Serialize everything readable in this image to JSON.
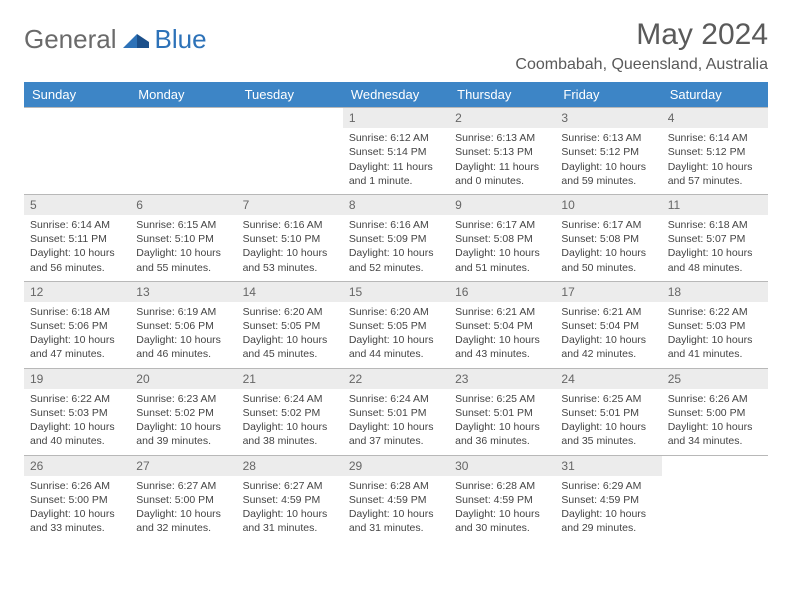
{
  "logo": {
    "text1": "General",
    "text2": "Blue"
  },
  "title": "May 2024",
  "location": "Coombabah, Queensland, Australia",
  "day_headers": [
    "Sunday",
    "Monday",
    "Tuesday",
    "Wednesday",
    "Thursday",
    "Friday",
    "Saturday"
  ],
  "colors": {
    "header_bg": "#3d85c6",
    "header_fg": "#ffffff",
    "daynum_bg": "#ececec",
    "border": "#b8b8b8",
    "text": "#444444",
    "title": "#5a5a5a"
  },
  "weeks": [
    [
      {
        "n": "",
        "sr": "",
        "ss": "",
        "dl": ""
      },
      {
        "n": "",
        "sr": "",
        "ss": "",
        "dl": ""
      },
      {
        "n": "",
        "sr": "",
        "ss": "",
        "dl": ""
      },
      {
        "n": "1",
        "sr": "Sunrise: 6:12 AM",
        "ss": "Sunset: 5:14 PM",
        "dl": "Daylight: 11 hours and 1 minute."
      },
      {
        "n": "2",
        "sr": "Sunrise: 6:13 AM",
        "ss": "Sunset: 5:13 PM",
        "dl": "Daylight: 11 hours and 0 minutes."
      },
      {
        "n": "3",
        "sr": "Sunrise: 6:13 AM",
        "ss": "Sunset: 5:12 PM",
        "dl": "Daylight: 10 hours and 59 minutes."
      },
      {
        "n": "4",
        "sr": "Sunrise: 6:14 AM",
        "ss": "Sunset: 5:12 PM",
        "dl": "Daylight: 10 hours and 57 minutes."
      }
    ],
    [
      {
        "n": "5",
        "sr": "Sunrise: 6:14 AM",
        "ss": "Sunset: 5:11 PM",
        "dl": "Daylight: 10 hours and 56 minutes."
      },
      {
        "n": "6",
        "sr": "Sunrise: 6:15 AM",
        "ss": "Sunset: 5:10 PM",
        "dl": "Daylight: 10 hours and 55 minutes."
      },
      {
        "n": "7",
        "sr": "Sunrise: 6:16 AM",
        "ss": "Sunset: 5:10 PM",
        "dl": "Daylight: 10 hours and 53 minutes."
      },
      {
        "n": "8",
        "sr": "Sunrise: 6:16 AM",
        "ss": "Sunset: 5:09 PM",
        "dl": "Daylight: 10 hours and 52 minutes."
      },
      {
        "n": "9",
        "sr": "Sunrise: 6:17 AM",
        "ss": "Sunset: 5:08 PM",
        "dl": "Daylight: 10 hours and 51 minutes."
      },
      {
        "n": "10",
        "sr": "Sunrise: 6:17 AM",
        "ss": "Sunset: 5:08 PM",
        "dl": "Daylight: 10 hours and 50 minutes."
      },
      {
        "n": "11",
        "sr": "Sunrise: 6:18 AM",
        "ss": "Sunset: 5:07 PM",
        "dl": "Daylight: 10 hours and 48 minutes."
      }
    ],
    [
      {
        "n": "12",
        "sr": "Sunrise: 6:18 AM",
        "ss": "Sunset: 5:06 PM",
        "dl": "Daylight: 10 hours and 47 minutes."
      },
      {
        "n": "13",
        "sr": "Sunrise: 6:19 AM",
        "ss": "Sunset: 5:06 PM",
        "dl": "Daylight: 10 hours and 46 minutes."
      },
      {
        "n": "14",
        "sr": "Sunrise: 6:20 AM",
        "ss": "Sunset: 5:05 PM",
        "dl": "Daylight: 10 hours and 45 minutes."
      },
      {
        "n": "15",
        "sr": "Sunrise: 6:20 AM",
        "ss": "Sunset: 5:05 PM",
        "dl": "Daylight: 10 hours and 44 minutes."
      },
      {
        "n": "16",
        "sr": "Sunrise: 6:21 AM",
        "ss": "Sunset: 5:04 PM",
        "dl": "Daylight: 10 hours and 43 minutes."
      },
      {
        "n": "17",
        "sr": "Sunrise: 6:21 AM",
        "ss": "Sunset: 5:04 PM",
        "dl": "Daylight: 10 hours and 42 minutes."
      },
      {
        "n": "18",
        "sr": "Sunrise: 6:22 AM",
        "ss": "Sunset: 5:03 PM",
        "dl": "Daylight: 10 hours and 41 minutes."
      }
    ],
    [
      {
        "n": "19",
        "sr": "Sunrise: 6:22 AM",
        "ss": "Sunset: 5:03 PM",
        "dl": "Daylight: 10 hours and 40 minutes."
      },
      {
        "n": "20",
        "sr": "Sunrise: 6:23 AM",
        "ss": "Sunset: 5:02 PM",
        "dl": "Daylight: 10 hours and 39 minutes."
      },
      {
        "n": "21",
        "sr": "Sunrise: 6:24 AM",
        "ss": "Sunset: 5:02 PM",
        "dl": "Daylight: 10 hours and 38 minutes."
      },
      {
        "n": "22",
        "sr": "Sunrise: 6:24 AM",
        "ss": "Sunset: 5:01 PM",
        "dl": "Daylight: 10 hours and 37 minutes."
      },
      {
        "n": "23",
        "sr": "Sunrise: 6:25 AM",
        "ss": "Sunset: 5:01 PM",
        "dl": "Daylight: 10 hours and 36 minutes."
      },
      {
        "n": "24",
        "sr": "Sunrise: 6:25 AM",
        "ss": "Sunset: 5:01 PM",
        "dl": "Daylight: 10 hours and 35 minutes."
      },
      {
        "n": "25",
        "sr": "Sunrise: 6:26 AM",
        "ss": "Sunset: 5:00 PM",
        "dl": "Daylight: 10 hours and 34 minutes."
      }
    ],
    [
      {
        "n": "26",
        "sr": "Sunrise: 6:26 AM",
        "ss": "Sunset: 5:00 PM",
        "dl": "Daylight: 10 hours and 33 minutes."
      },
      {
        "n": "27",
        "sr": "Sunrise: 6:27 AM",
        "ss": "Sunset: 5:00 PM",
        "dl": "Daylight: 10 hours and 32 minutes."
      },
      {
        "n": "28",
        "sr": "Sunrise: 6:27 AM",
        "ss": "Sunset: 4:59 PM",
        "dl": "Daylight: 10 hours and 31 minutes."
      },
      {
        "n": "29",
        "sr": "Sunrise: 6:28 AM",
        "ss": "Sunset: 4:59 PM",
        "dl": "Daylight: 10 hours and 31 minutes."
      },
      {
        "n": "30",
        "sr": "Sunrise: 6:28 AM",
        "ss": "Sunset: 4:59 PM",
        "dl": "Daylight: 10 hours and 30 minutes."
      },
      {
        "n": "31",
        "sr": "Sunrise: 6:29 AM",
        "ss": "Sunset: 4:59 PM",
        "dl": "Daylight: 10 hours and 29 minutes."
      },
      {
        "n": "",
        "sr": "",
        "ss": "",
        "dl": ""
      }
    ]
  ]
}
